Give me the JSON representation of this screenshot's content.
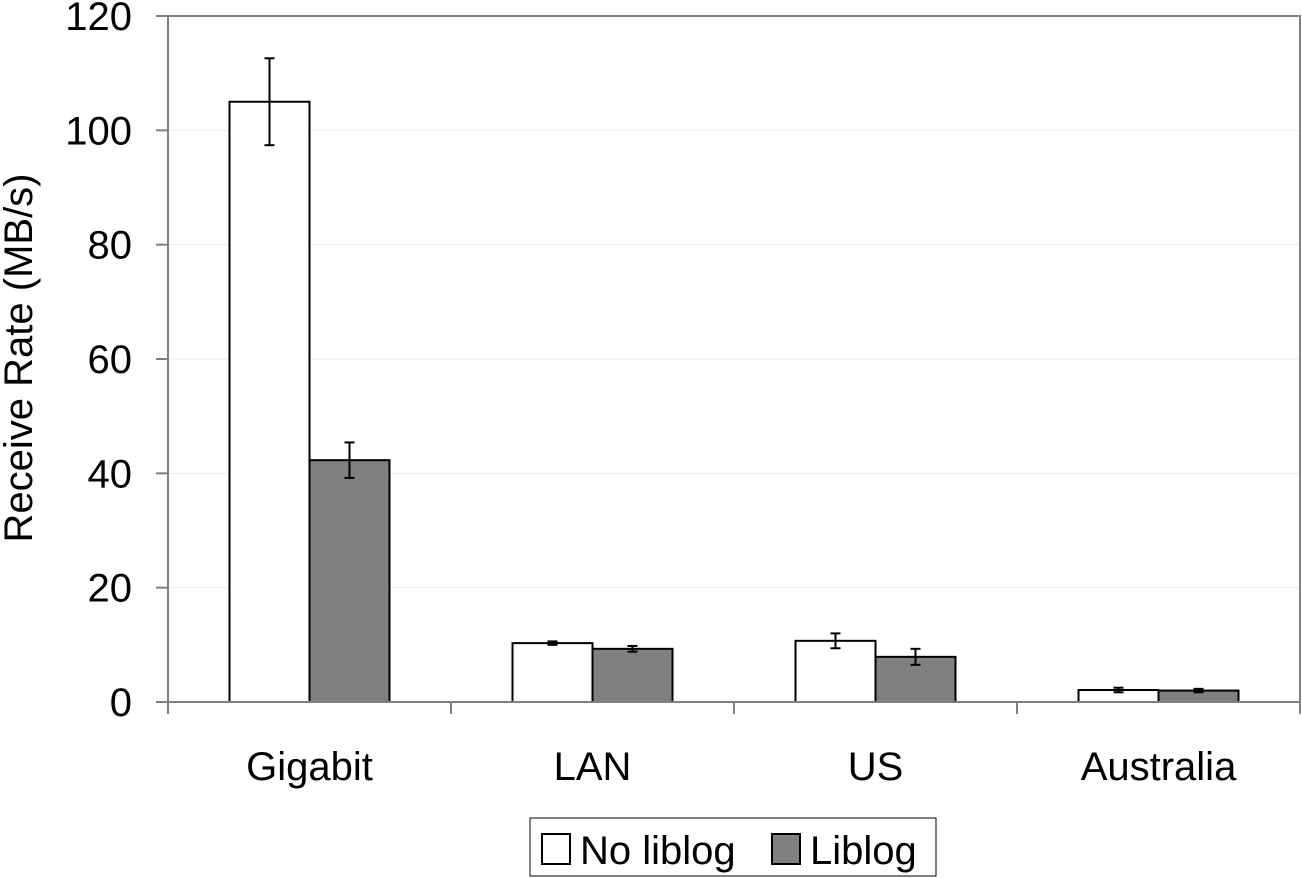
{
  "chart_data": {
    "type": "bar",
    "ylabel": "Receive Rate (MB/s)",
    "xlabel": "",
    "ylim": [
      0,
      120
    ],
    "yticks": [
      0,
      20,
      40,
      60,
      80,
      100,
      120
    ],
    "grid": true,
    "categories": [
      "Gigabit",
      "LAN",
      "US",
      "Australia"
    ],
    "series": [
      {
        "name": "No liblog",
        "color": "#ffffff",
        "values": [
          105,
          10.3,
          10.7,
          2.1
        ],
        "error": [
          7.6,
          0.3,
          1.3,
          0.4
        ]
      },
      {
        "name": "Liblog",
        "color": "#808080",
        "values": [
          42.3,
          9.3,
          7.9,
          2.0
        ],
        "error": [
          3.1,
          0.5,
          1.4,
          0.3
        ]
      }
    ],
    "legend_position": "bottom"
  }
}
